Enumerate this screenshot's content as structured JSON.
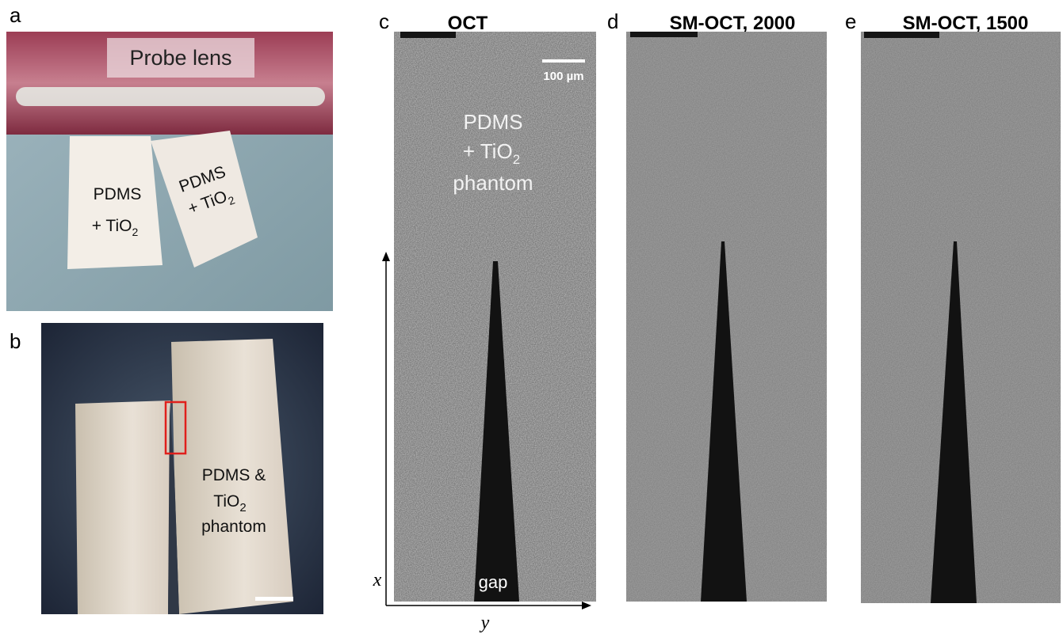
{
  "panels": {
    "a": {
      "label": "a",
      "probe_label": "Probe lens",
      "left_block": {
        "line1": "PDMS",
        "line2": "+ TiO",
        "sub": "2"
      },
      "right_block": {
        "line1": "PDMS",
        "line2": "+ TiO",
        "sub": "2"
      }
    },
    "b": {
      "label": "b",
      "text": {
        "line1": "PDMS &",
        "line2": "TiO",
        "sub": "2",
        "line3": "phantom"
      }
    },
    "c": {
      "label": "c",
      "title": "OCT",
      "scale_bar": "100 µm",
      "text": {
        "line1": "PDMS",
        "line2": "+ TiO",
        "sub": "2",
        "line3": "phantom"
      },
      "gap": "gap",
      "x_axis": "x",
      "y_axis": "y"
    },
    "d": {
      "label": "d",
      "title": "SM-OCT, 2000"
    },
    "e": {
      "label": "e",
      "title": "SM-OCT, 1500"
    }
  }
}
